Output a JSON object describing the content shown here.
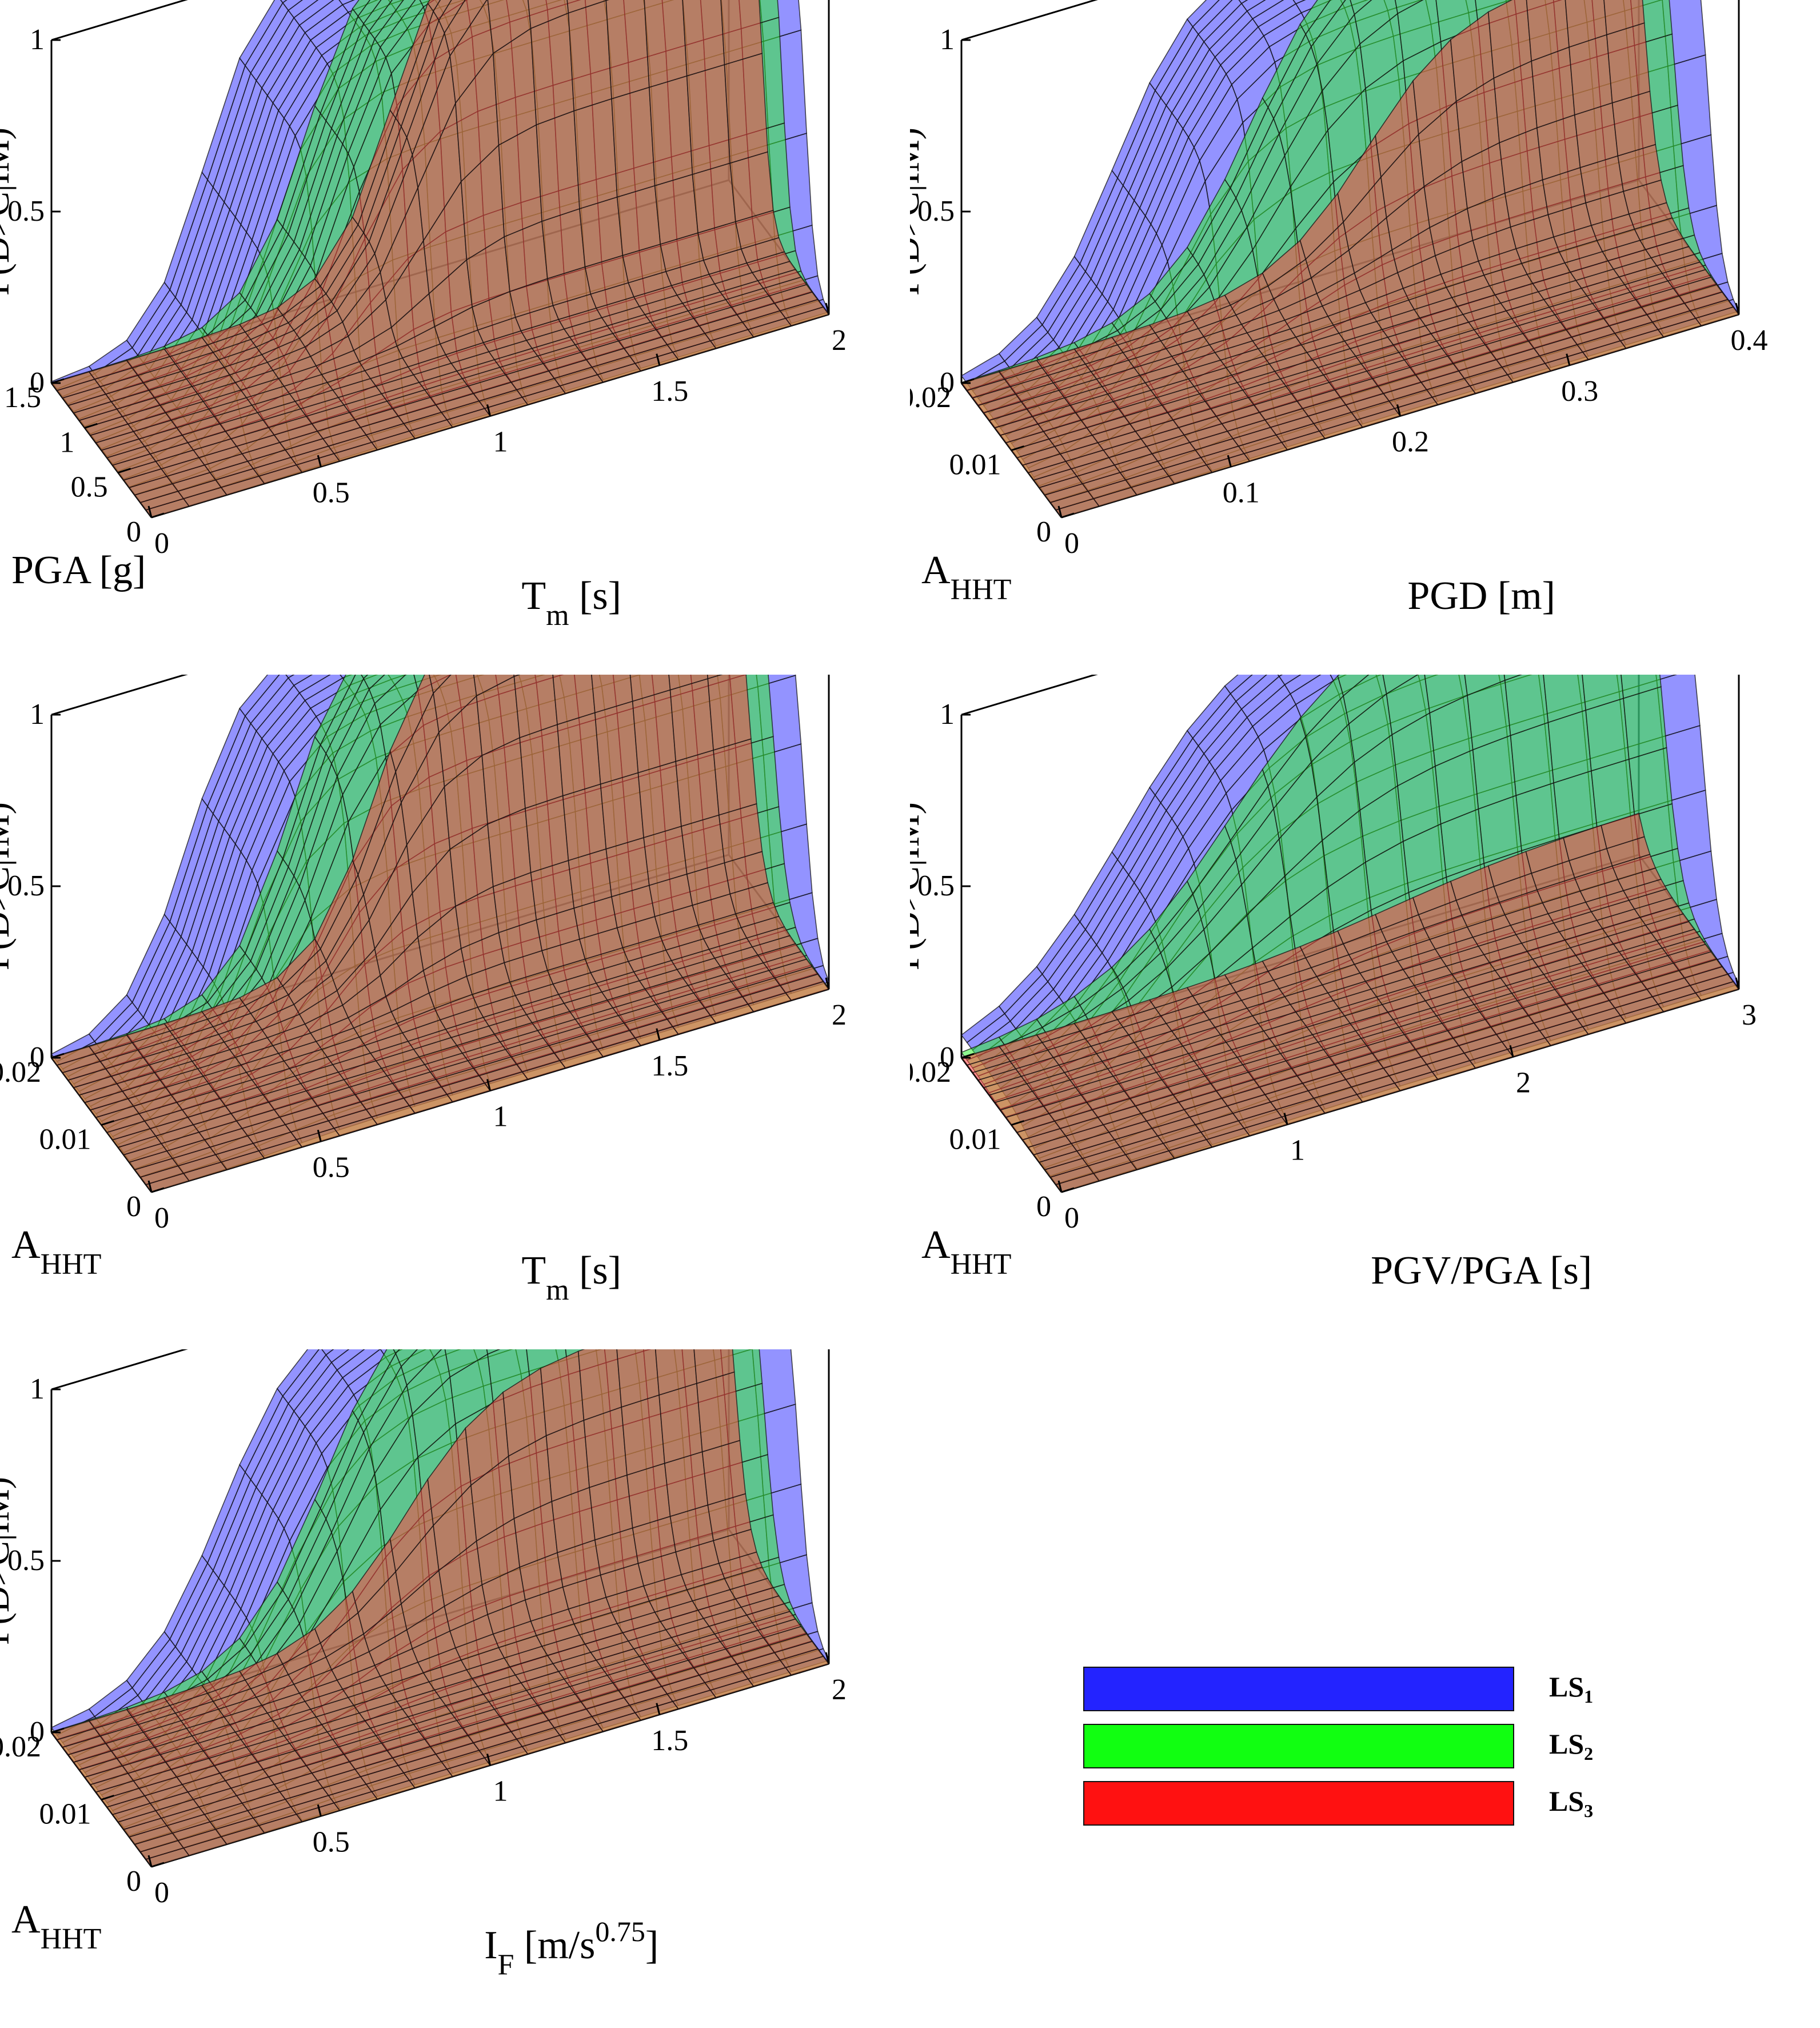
{
  "chart_data": [
    {
      "type": "surface",
      "zlabel": "P(D>C|IM)",
      "zticks": [
        "0",
        "0.5",
        "1"
      ],
      "xlabel": "PGA [g]",
      "xticks": [
        "0",
        "0.5",
        "1",
        "1.5"
      ],
      "xlim": [
        0,
        1.5
      ],
      "ylabel": "T",
      "ylabel_sub": "m",
      "ylabel_tail": " [s]",
      "yticks": [
        "0",
        "0.5",
        "1",
        "1.5",
        "2"
      ],
      "ylim": [
        0,
        2
      ],
      "zlim": [
        0,
        1
      ],
      "series": [
        {
          "name": "LS1",
          "color": "#3a3aff",
          "x50": 0.35,
          "y50": 0.45,
          "sx": 0.12,
          "sy": 0.14
        },
        {
          "name": "LS2",
          "color": "#33ee33",
          "x50": 0.7,
          "y50": 0.75,
          "sx": 0.12,
          "sy": 0.15
        },
        {
          "name": "LS3",
          "color": "#ff4444",
          "x50": 1.0,
          "y50": 1.0,
          "sx": 0.12,
          "sy": 0.15
        }
      ]
    },
    {
      "type": "surface",
      "zlabel": "P(D>C|IM)",
      "zticks": [
        "0",
        "0.5",
        "1"
      ],
      "xlabel": "A",
      "xlabel_sub": "HHT",
      "xticks": [
        "0",
        "0.01",
        "0.02"
      ],
      "xlim": [
        0,
        0.02
      ],
      "ylabel": "PGD [m]",
      "yticks": [
        "0",
        "0.1",
        "0.2",
        "0.3",
        "0.4"
      ],
      "ylim": [
        0,
        0.4
      ],
      "zlim": [
        0,
        1
      ],
      "series": [
        {
          "name": "LS1",
          "color": "#3a3aff",
          "x50": 0.006,
          "y50": 0.09,
          "sx": 0.0022,
          "sy": 0.04
        },
        {
          "name": "LS2",
          "color": "#33ee33",
          "x50": 0.013,
          "y50": 0.17,
          "sx": 0.0025,
          "sy": 0.045
        },
        {
          "name": "LS3",
          "color": "#ff4444",
          "x50": 0.019,
          "y50": 0.24,
          "sx": 0.0025,
          "sy": 0.045
        }
      ]
    },
    {
      "type": "surface",
      "zlabel": "P(D>C|IM)",
      "zticks": [
        "0",
        "0.5",
        "1"
      ],
      "xlabel": "A",
      "xlabel_sub": "HHT",
      "xticks": [
        "0",
        "0.01",
        "0.02"
      ],
      "xlim": [
        0,
        0.02
      ],
      "ylabel": "T",
      "ylabel_sub": "m",
      "ylabel_tail": " [s]",
      "yticks": [
        "0",
        "0.5",
        "1",
        "1.5",
        "2"
      ],
      "ylim": [
        0,
        2
      ],
      "zlim": [
        0,
        1
      ],
      "series": [
        {
          "name": "LS1",
          "color": "#3a3aff",
          "x50": 0.005,
          "y50": 0.4,
          "sx": 0.0022,
          "sy": 0.15
        },
        {
          "name": "LS2",
          "color": "#33ee33",
          "x50": 0.011,
          "y50": 0.7,
          "sx": 0.0025,
          "sy": 0.15
        },
        {
          "name": "LS3",
          "color": "#ff4444",
          "x50": 0.016,
          "y50": 0.95,
          "sx": 0.0025,
          "sy": 0.15
        }
      ]
    },
    {
      "type": "surface",
      "zlabel": "P(D>C|IM)",
      "zticks": [
        "0",
        "0.5",
        "1"
      ],
      "xlabel": "A",
      "xlabel_sub": "HHT",
      "xticks": [
        "0",
        "0.01",
        "0.02"
      ],
      "xlim": [
        0,
        0.02
      ],
      "ylabel": "PGV/PGA [s]",
      "yticks": [
        "0",
        "1",
        "2",
        "3"
      ],
      "ylim": [
        0,
        3
      ],
      "zlim": [
        0,
        1
      ],
      "series": [
        {
          "name": "LS1",
          "color": "#3a3aff",
          "x50": 0.007,
          "y50": 0.7,
          "sx": 0.0028,
          "sy": 0.45
        },
        {
          "name": "LS2",
          "color": "#33ee33",
          "x50": 0.015,
          "y50": 1.2,
          "sx": 0.003,
          "sy": 0.5
        },
        {
          "name": "LS3",
          "color": "#ff4444",
          "x50": 0.024,
          "y50": 1.9,
          "sx": 0.0035,
          "sy": 0.55
        }
      ]
    },
    {
      "type": "surface",
      "zlabel": "P(D>C|IM)",
      "zticks": [
        "0",
        "0.5",
        "1"
      ],
      "xlabel": "A",
      "xlabel_sub": "HHT",
      "xticks": [
        "0",
        "0.01",
        "0.02"
      ],
      "xlim": [
        0,
        0.02
      ],
      "ylabel": "I",
      "ylabel_sub": "F",
      "ylabel_tail": " [m/s",
      "ylabel_sup": "0.75",
      "ylabel_end": "]",
      "yticks": [
        "0",
        "0.5",
        "1",
        "1.5",
        "2"
      ],
      "ylim": [
        0,
        2
      ],
      "zlim": [
        0,
        1
      ],
      "series": [
        {
          "name": "LS1",
          "color": "#3a3aff",
          "x50": 0.006,
          "y50": 0.5,
          "sx": 0.0022,
          "sy": 0.2
        },
        {
          "name": "LS2",
          "color": "#33ee33",
          "x50": 0.013,
          "y50": 0.8,
          "sx": 0.0025,
          "sy": 0.2
        },
        {
          "name": "LS3",
          "color": "#ff4444",
          "x50": 0.019,
          "y50": 1.05,
          "sx": 0.0025,
          "sy": 0.22
        }
      ]
    }
  ],
  "legend": {
    "items": [
      {
        "label": "LS",
        "sub": "1",
        "color": "#2323ff"
      },
      {
        "label": "LS",
        "sub": "2",
        "color": "#11ff11"
      },
      {
        "label": "LS",
        "sub": "3",
        "color": "#ff1111"
      }
    ]
  }
}
